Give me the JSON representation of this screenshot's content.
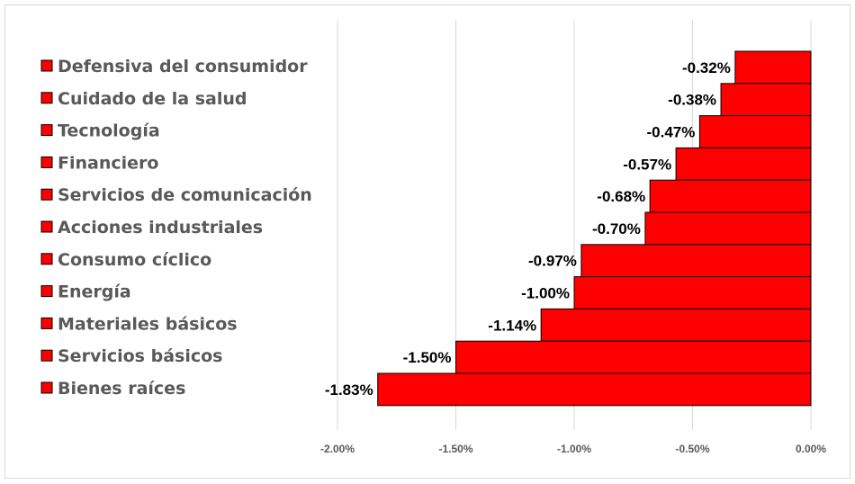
{
  "chart_data": {
    "type": "bar",
    "orientation": "horizontal",
    "title": "",
    "xlabel": "",
    "ylabel": "",
    "categories": [
      "Defensiva del consumidor",
      "Cuidado de la salud",
      "Tecnología",
      "Financiero",
      "Servicios de comunicación",
      "Acciones industriales",
      "Consumo cíclico",
      "Energía",
      "Materiales básicos",
      "Servicios básicos",
      "Bienes raíces"
    ],
    "values": [
      -0.32,
      -0.38,
      -0.47,
      -0.57,
      -0.68,
      -0.7,
      -0.97,
      -1.0,
      -1.14,
      -1.5,
      -1.83
    ],
    "data_labels": [
      "-0.32%",
      "-0.38%",
      "-0.47%",
      "-0.57%",
      "-0.68%",
      "-0.70%",
      "-0.97%",
      "-1.00%",
      "-1.14%",
      "-1.50%",
      "-1.83%"
    ],
    "xlim": [
      -2.0,
      0.0
    ],
    "xticks": [
      -2.0,
      -1.5,
      -1.0,
      -0.5,
      0.0
    ],
    "xtick_labels": [
      "-2.00%",
      "-1.50%",
      "-1.00%",
      "-0.50%",
      "0.00%"
    ],
    "grid": true,
    "legend": "left",
    "bar_color": "#ff0000",
    "bar_edge_color": "#000000",
    "grid_color": "#d9d9d9"
  }
}
